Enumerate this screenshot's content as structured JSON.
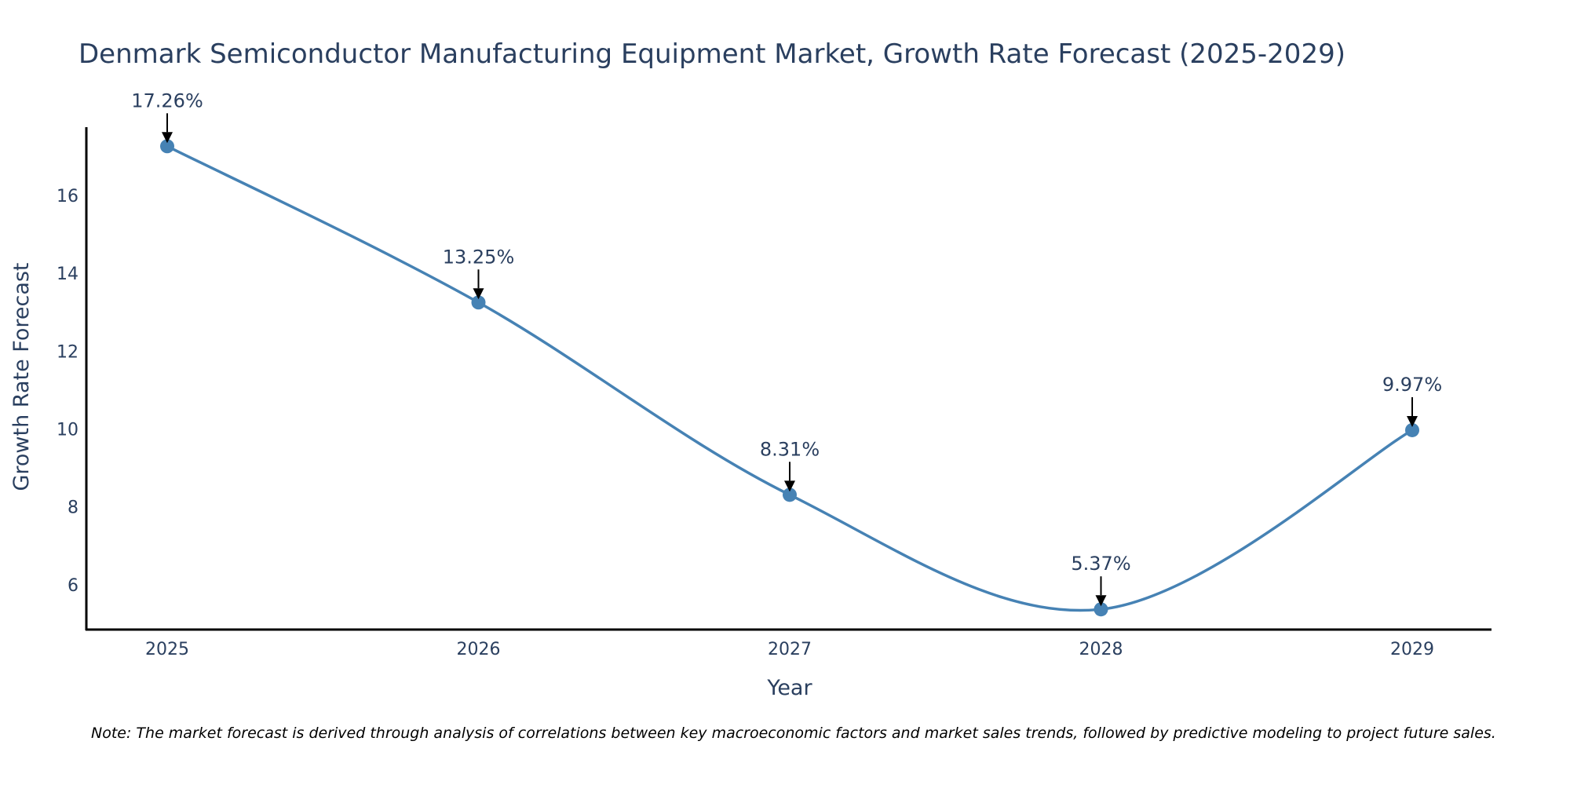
{
  "chart_data": {
    "type": "line",
    "title": "Denmark Semiconductor Manufacturing Equipment Market, Growth Rate Forecast (2025-2029)",
    "xlabel": "Year",
    "ylabel": "Growth Rate Forecast",
    "categories": [
      "2025",
      "2026",
      "2027",
      "2028",
      "2029"
    ],
    "values": [
      17.26,
      13.25,
      8.31,
      5.37,
      9.97
    ],
    "data_labels": [
      "17.26%",
      "13.25%",
      "8.31%",
      "5.37%",
      "9.97%"
    ],
    "y_ticks": [
      6,
      8,
      10,
      12,
      14,
      16
    ],
    "ylim": [
      4.85,
      17.75
    ],
    "grid": false,
    "line_shape": "spline",
    "note": "Note: The market forecast is derived through analysis of correlations between key macroeconomic factors and market sales trends, followed by predictive modeling to project future sales."
  },
  "colors": {
    "line": "#4682b4",
    "marker": "#4682b4",
    "axis": "#000000",
    "text": "#2a3f5f",
    "arrow": "#000000"
  }
}
